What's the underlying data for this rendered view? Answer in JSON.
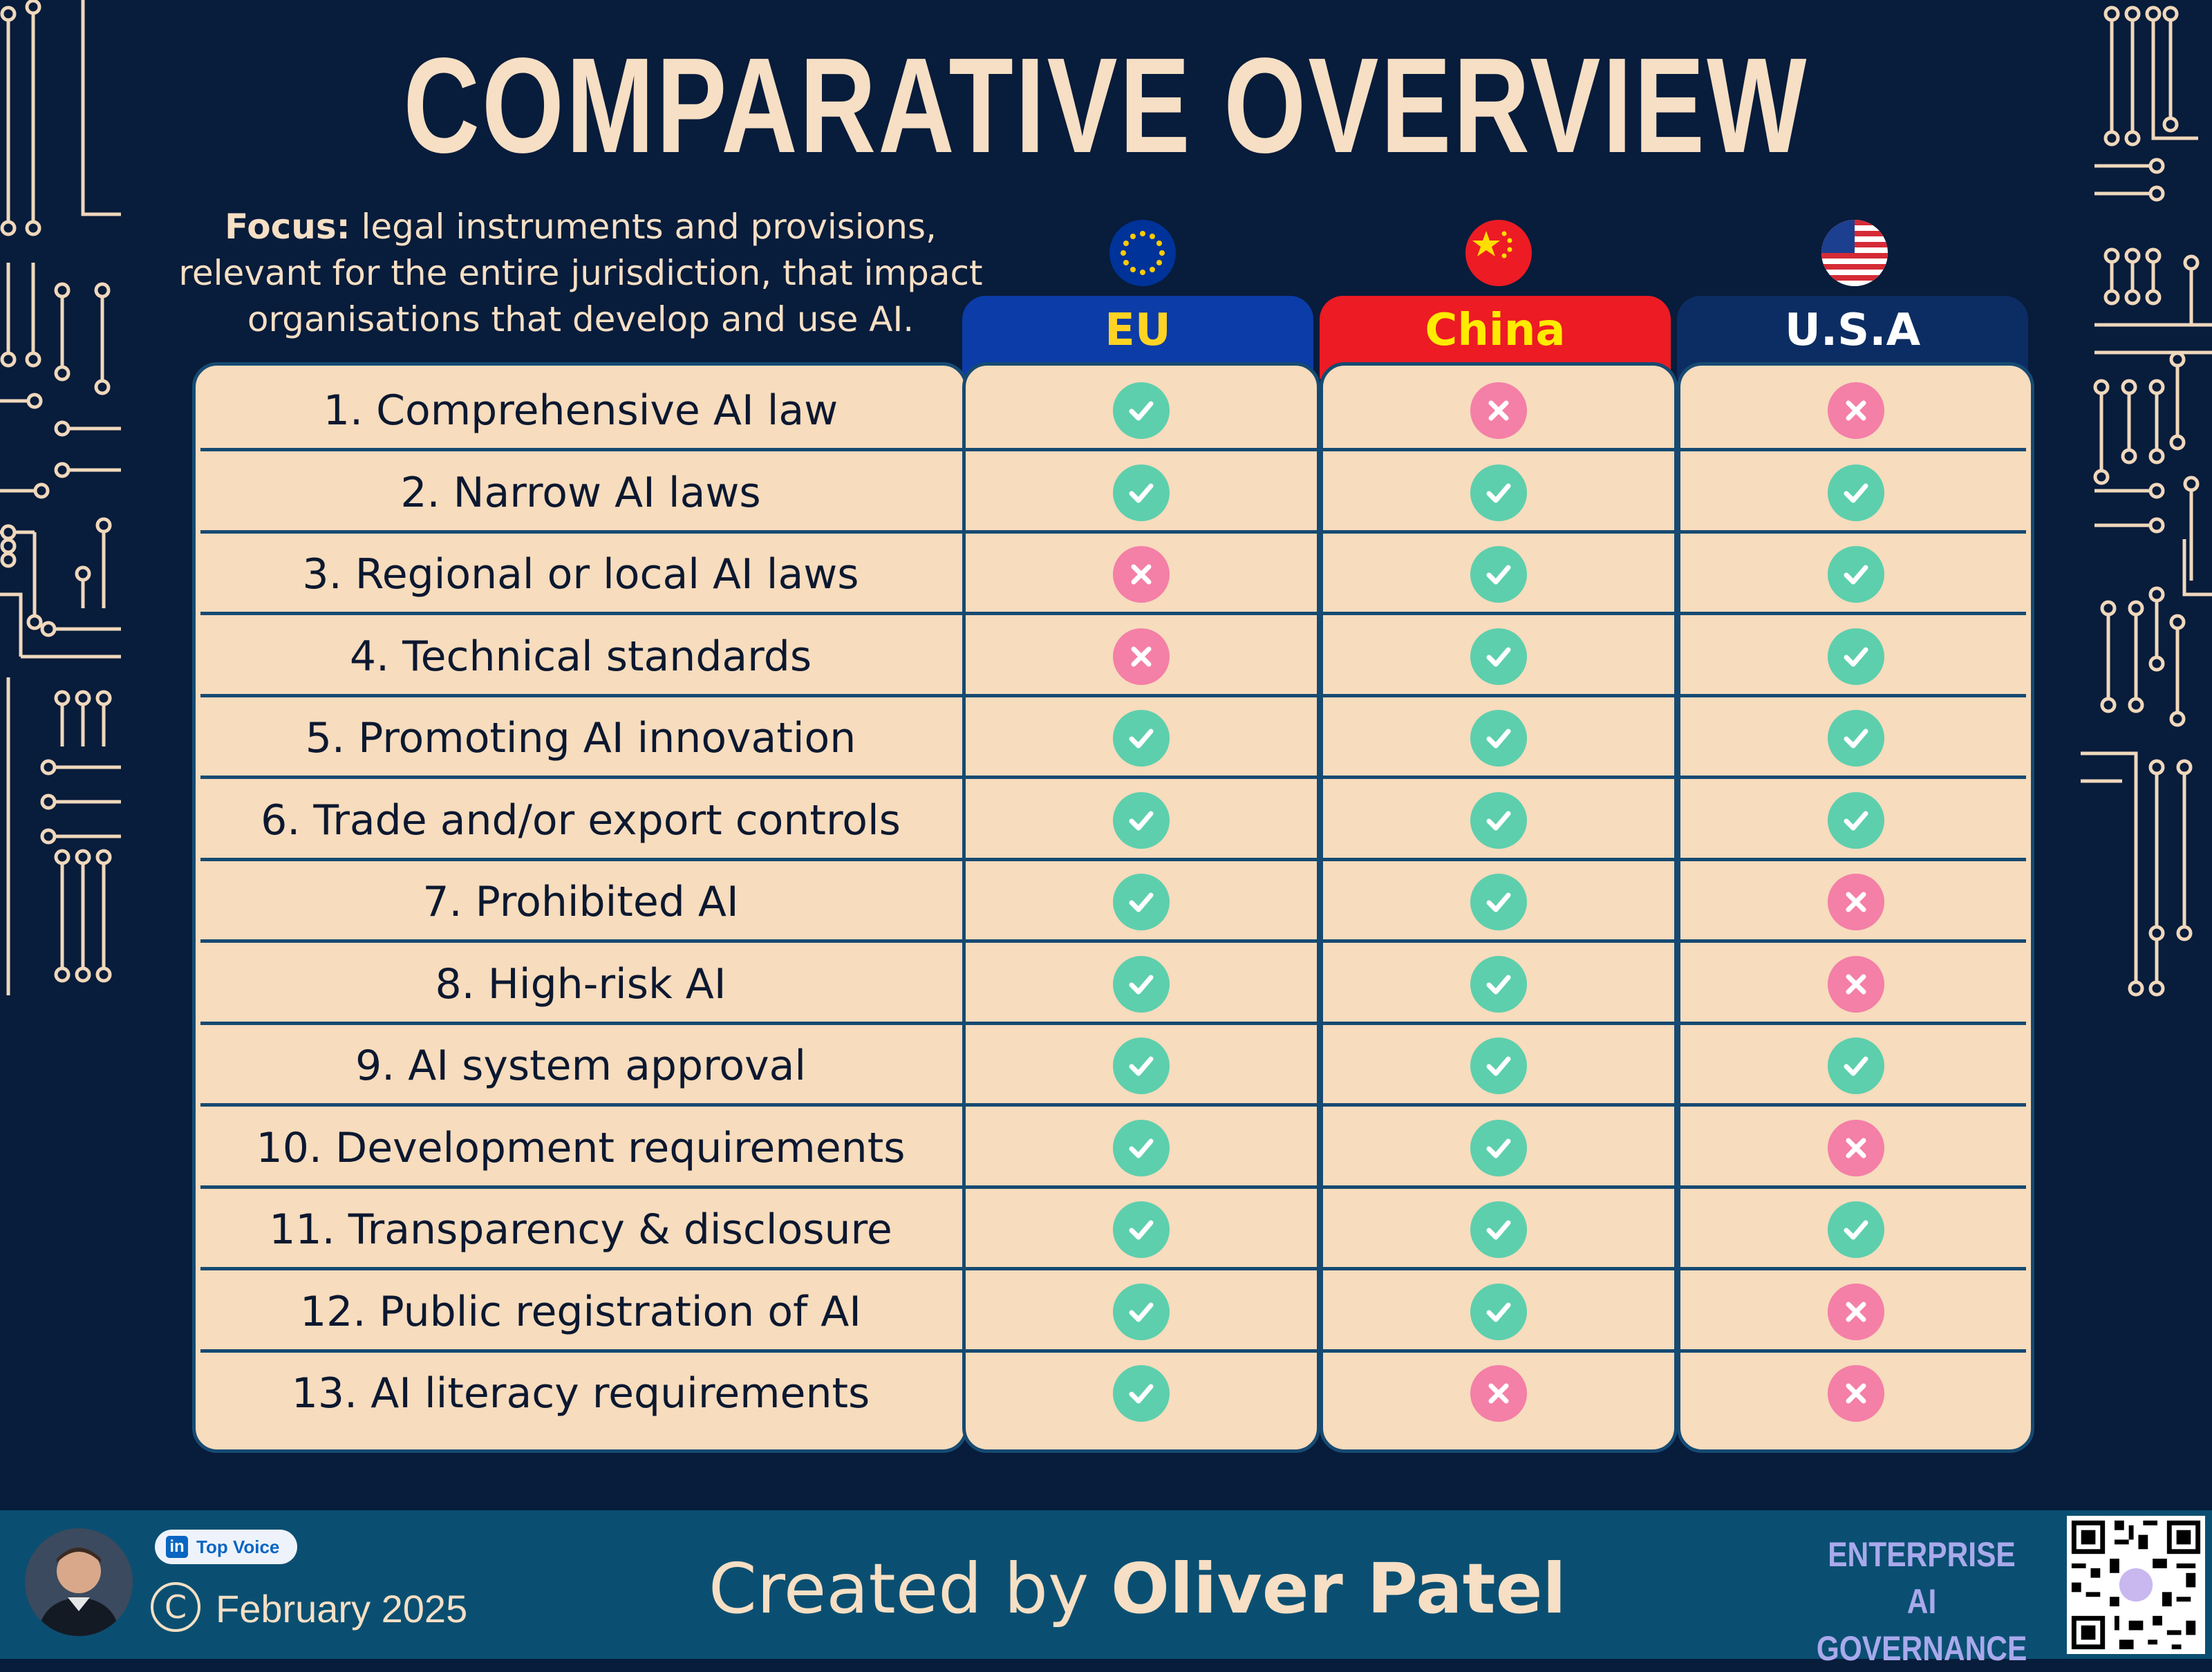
{
  "title": "COMPARATIVE OVERVIEW",
  "focus": {
    "label": "Focus:",
    "text": " legal instruments and provisions, relevant for the entire jurisdiction, that impact organisations that develop and use AI."
  },
  "columns": [
    {
      "key": "eu",
      "label": "EU",
      "flag": "eu-flag-icon"
    },
    {
      "key": "cn",
      "label": "China",
      "flag": "china-flag-icon"
    },
    {
      "key": "us",
      "label": "U.S.A",
      "flag": "usa-flag-icon"
    }
  ],
  "rows": [
    {
      "label": "1. Comprehensive AI law",
      "eu": "yes",
      "cn": "no",
      "us": "no"
    },
    {
      "label": "2. Narrow AI laws",
      "eu": "yes",
      "cn": "yes",
      "us": "yes"
    },
    {
      "label": "3. Regional or local AI laws",
      "eu": "no",
      "cn": "yes",
      "us": "yes"
    },
    {
      "label": "4. Technical standards",
      "eu": "no",
      "cn": "yes",
      "us": "yes"
    },
    {
      "label": "5. Promoting AI innovation",
      "eu": "yes",
      "cn": "yes",
      "us": "yes"
    },
    {
      "label": "6. Trade and/or export controls",
      "eu": "yes",
      "cn": "yes",
      "us": "yes"
    },
    {
      "label": "7. Prohibited AI",
      "eu": "yes",
      "cn": "yes",
      "us": "no"
    },
    {
      "label": "8. High-risk AI",
      "eu": "yes",
      "cn": "yes",
      "us": "no"
    },
    {
      "label": "9. AI system approval",
      "eu": "yes",
      "cn": "yes",
      "us": "yes"
    },
    {
      "label": "10. Development requirements",
      "eu": "yes",
      "cn": "yes",
      "us": "no"
    },
    {
      "label": "11. Transparency & disclosure",
      "eu": "yes",
      "cn": "yes",
      "us": "yes"
    },
    {
      "label": "12. Public registration of AI",
      "eu": "yes",
      "cn": "yes",
      "us": "no"
    },
    {
      "label": "13. AI literacy requirements",
      "eu": "yes",
      "cn": "no",
      "us": "no"
    }
  ],
  "footer": {
    "badge": "Top Voice",
    "copyright_symbol": "C",
    "date": "February 2025",
    "created_prefix": "Created by ",
    "author": "Oliver Patel",
    "brand_line1": "ENTERPRISE",
    "brand_line2": "AI GOVERNANCE"
  },
  "colors": {
    "background": "#081c3b",
    "panel": "#f7dcbd",
    "yes": "#5dcfad",
    "no": "#f47fa7",
    "eu_header": "#0b3ca8",
    "cn_header": "#ec1b24",
    "us_header": "#0c2d63",
    "footer": "#0a4f72"
  }
}
